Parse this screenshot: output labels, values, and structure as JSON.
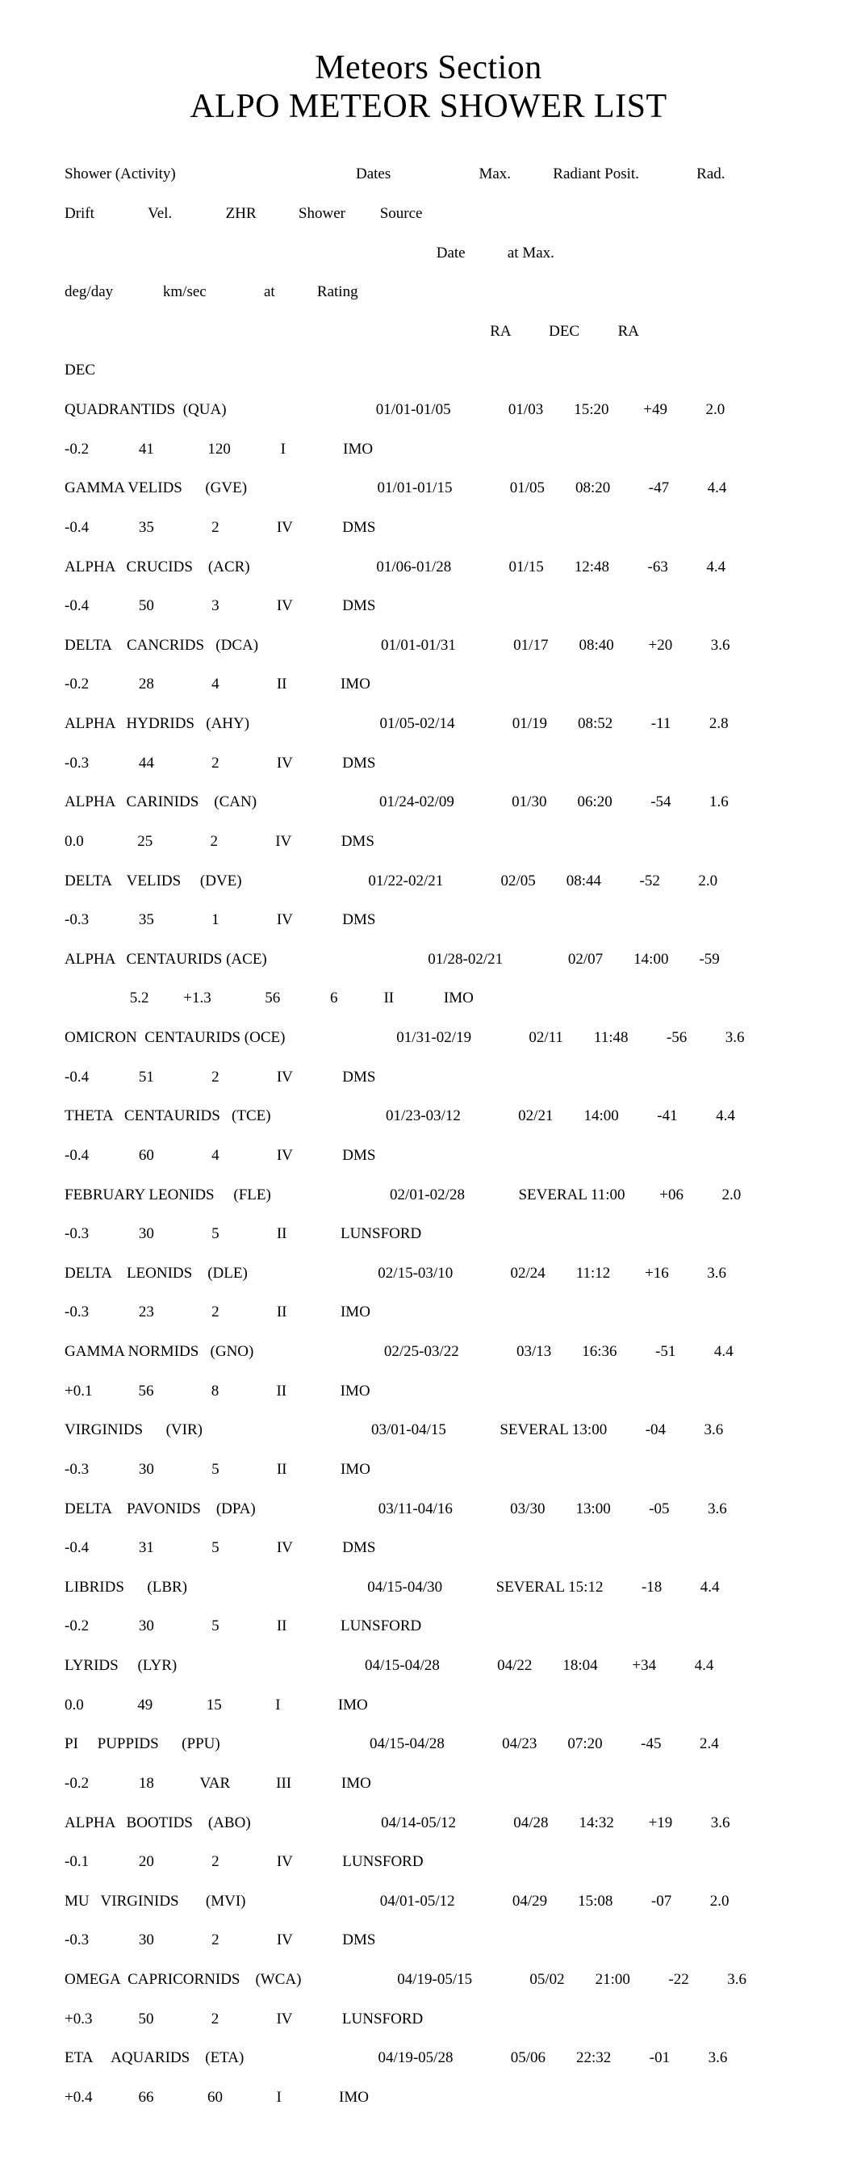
{
  "title1": "Meteors Section",
  "title2": "ALPO METEOR SHOWER LIST",
  "header": {
    "l1": "Shower (Activity)                                               Dates                       Max.           Radiant Posit.               Rad.",
    "l2": "Drift              Vel.              ZHR           Shower         Source",
    "l3": "                                                                                                 Date           at Max.",
    "l4": "deg/day             km/sec               at           Rating",
    "l5": "                                                                                                               RA          DEC          RA",
    "l6": "DEC"
  },
  "rows": [
    {
      "a": "QUADRANTIDS  (QUA)                                       01/01-01/05               01/03        15:20         +49          2.0",
      "b": "-0.2             41              120             I               IMO"
    },
    {
      "a": "GAMMA VELIDS      (GVE)                                  01/01-01/15               01/05        08:20          -47          4.4",
      "b": "-0.4             35               2               IV             DMS"
    },
    {
      "a": "ALPHA   CRUCIDS    (ACR)                                 01/06-01/28               01/15        12:48          -63          4.4",
      "b": "-0.4             50               3               IV             DMS"
    },
    {
      "a": "DELTA    CANCRIDS   (DCA)                                01/01-01/31               01/17        08:40         +20          3.6",
      "b": "-0.2             28               4               II              IMO"
    },
    {
      "a": "ALPHA   HYDRIDS   (AHY)                                  01/05-02/14               01/19        08:52          -11          2.8",
      "b": "-0.3             44               2               IV             DMS"
    },
    {
      "a": "ALPHA   CARINIDS    (CAN)                                01/24-02/09               01/30        06:20          -54          1.6",
      "b": "0.0              25               2               IV             DMS"
    },
    {
      "a": "DELTA    VELIDS     (DVE)                                 01/22-02/21               02/05        08:44          -52          2.0",
      "b": "-0.3             35               1               IV             DMS"
    },
    {
      "a": "ALPHA   CENTAURIDS (ACE)                                          01/28-02/21                 02/07        14:00        -59",
      "b": "                 5.2         +1.3              56             6            II             IMO"
    },
    {
      "a": "OMICRON  CENTAURIDS (OCE)                             01/31-02/19               02/11        11:48          -56          3.6",
      "b": "-0.4             51               2               IV             DMS"
    },
    {
      "a": "THETA   CENTAURIDS   (TCE)                              01/23-03/12               02/21        14:00          -41          4.4",
      "b": "-0.4             60               4               IV             DMS"
    },
    {
      "a": "FEBRUARY LEONIDS     (FLE)                               02/01-02/28              SEVERAL 11:00         +06          2.0",
      "b": "-0.3             30               5               II              LUNSFORD"
    },
    {
      "a": "DELTA    LEONIDS    (DLE)                                  02/15-03/10               02/24        11:12         +16          3.6",
      "b": "-0.3             23               2               II              IMO"
    },
    {
      "a": "GAMMA NORMIDS   (GNO)                                  02/25-03/22               03/13        16:36          -51          4.4",
      "b": "+0.1            56               8               II              IMO"
    },
    {
      "a": "VIRGINIDS      (VIR)                                            03/01-04/15              SEVERAL 13:00          -04          3.6",
      "b": "-0.3             30               5               II              IMO"
    },
    {
      "a": "DELTA    PAVONIDS    (DPA)                                03/11-04/16               03/30        13:00          -05          3.6",
      "b": "-0.4             31               5               IV             DMS"
    },
    {
      "a": "LIBRIDS      (LBR)                                               04/15-04/30              SEVERAL 15:12          -18          4.4",
      "b": "-0.2             30               5               II              LUNSFORD"
    },
    {
      "a": "LYRIDS     (LYR)                                                 04/15-04/28               04/22        18:04         +34          4.4",
      "b": "0.0              49              15              I               IMO"
    },
    {
      "a": "PI     PUPPIDS      (PPU)                                       04/15-04/28               04/23        07:20          -45          2.4",
      "b": "-0.2             18            VAR            III             IMO"
    },
    {
      "a": "ALPHA   BOOTIDS    (ABO)                                  04/14-05/12               04/28        14:32         +19          3.6",
      "b": "-0.1             20               2               IV             LUNSFORD"
    },
    {
      "a": "MU   VIRGINIDS       (MVI)                                   04/01-05/12               04/29        15:08          -07          2.0",
      "b": "-0.3             30               2               IV             DMS"
    },
    {
      "a": "OMEGA  CAPRICORNIDS    (WCA)                         04/19-05/15               05/02        21:00          -22          3.6",
      "b": "+0.3            50               2               IV             LUNSFORD"
    },
    {
      "a": "ETA     AQUARIDS    (ETA)                                   04/19-05/28               05/06        22:32          -01          3.6",
      "b": "+0.4            66              60              I               IMO"
    }
  ]
}
